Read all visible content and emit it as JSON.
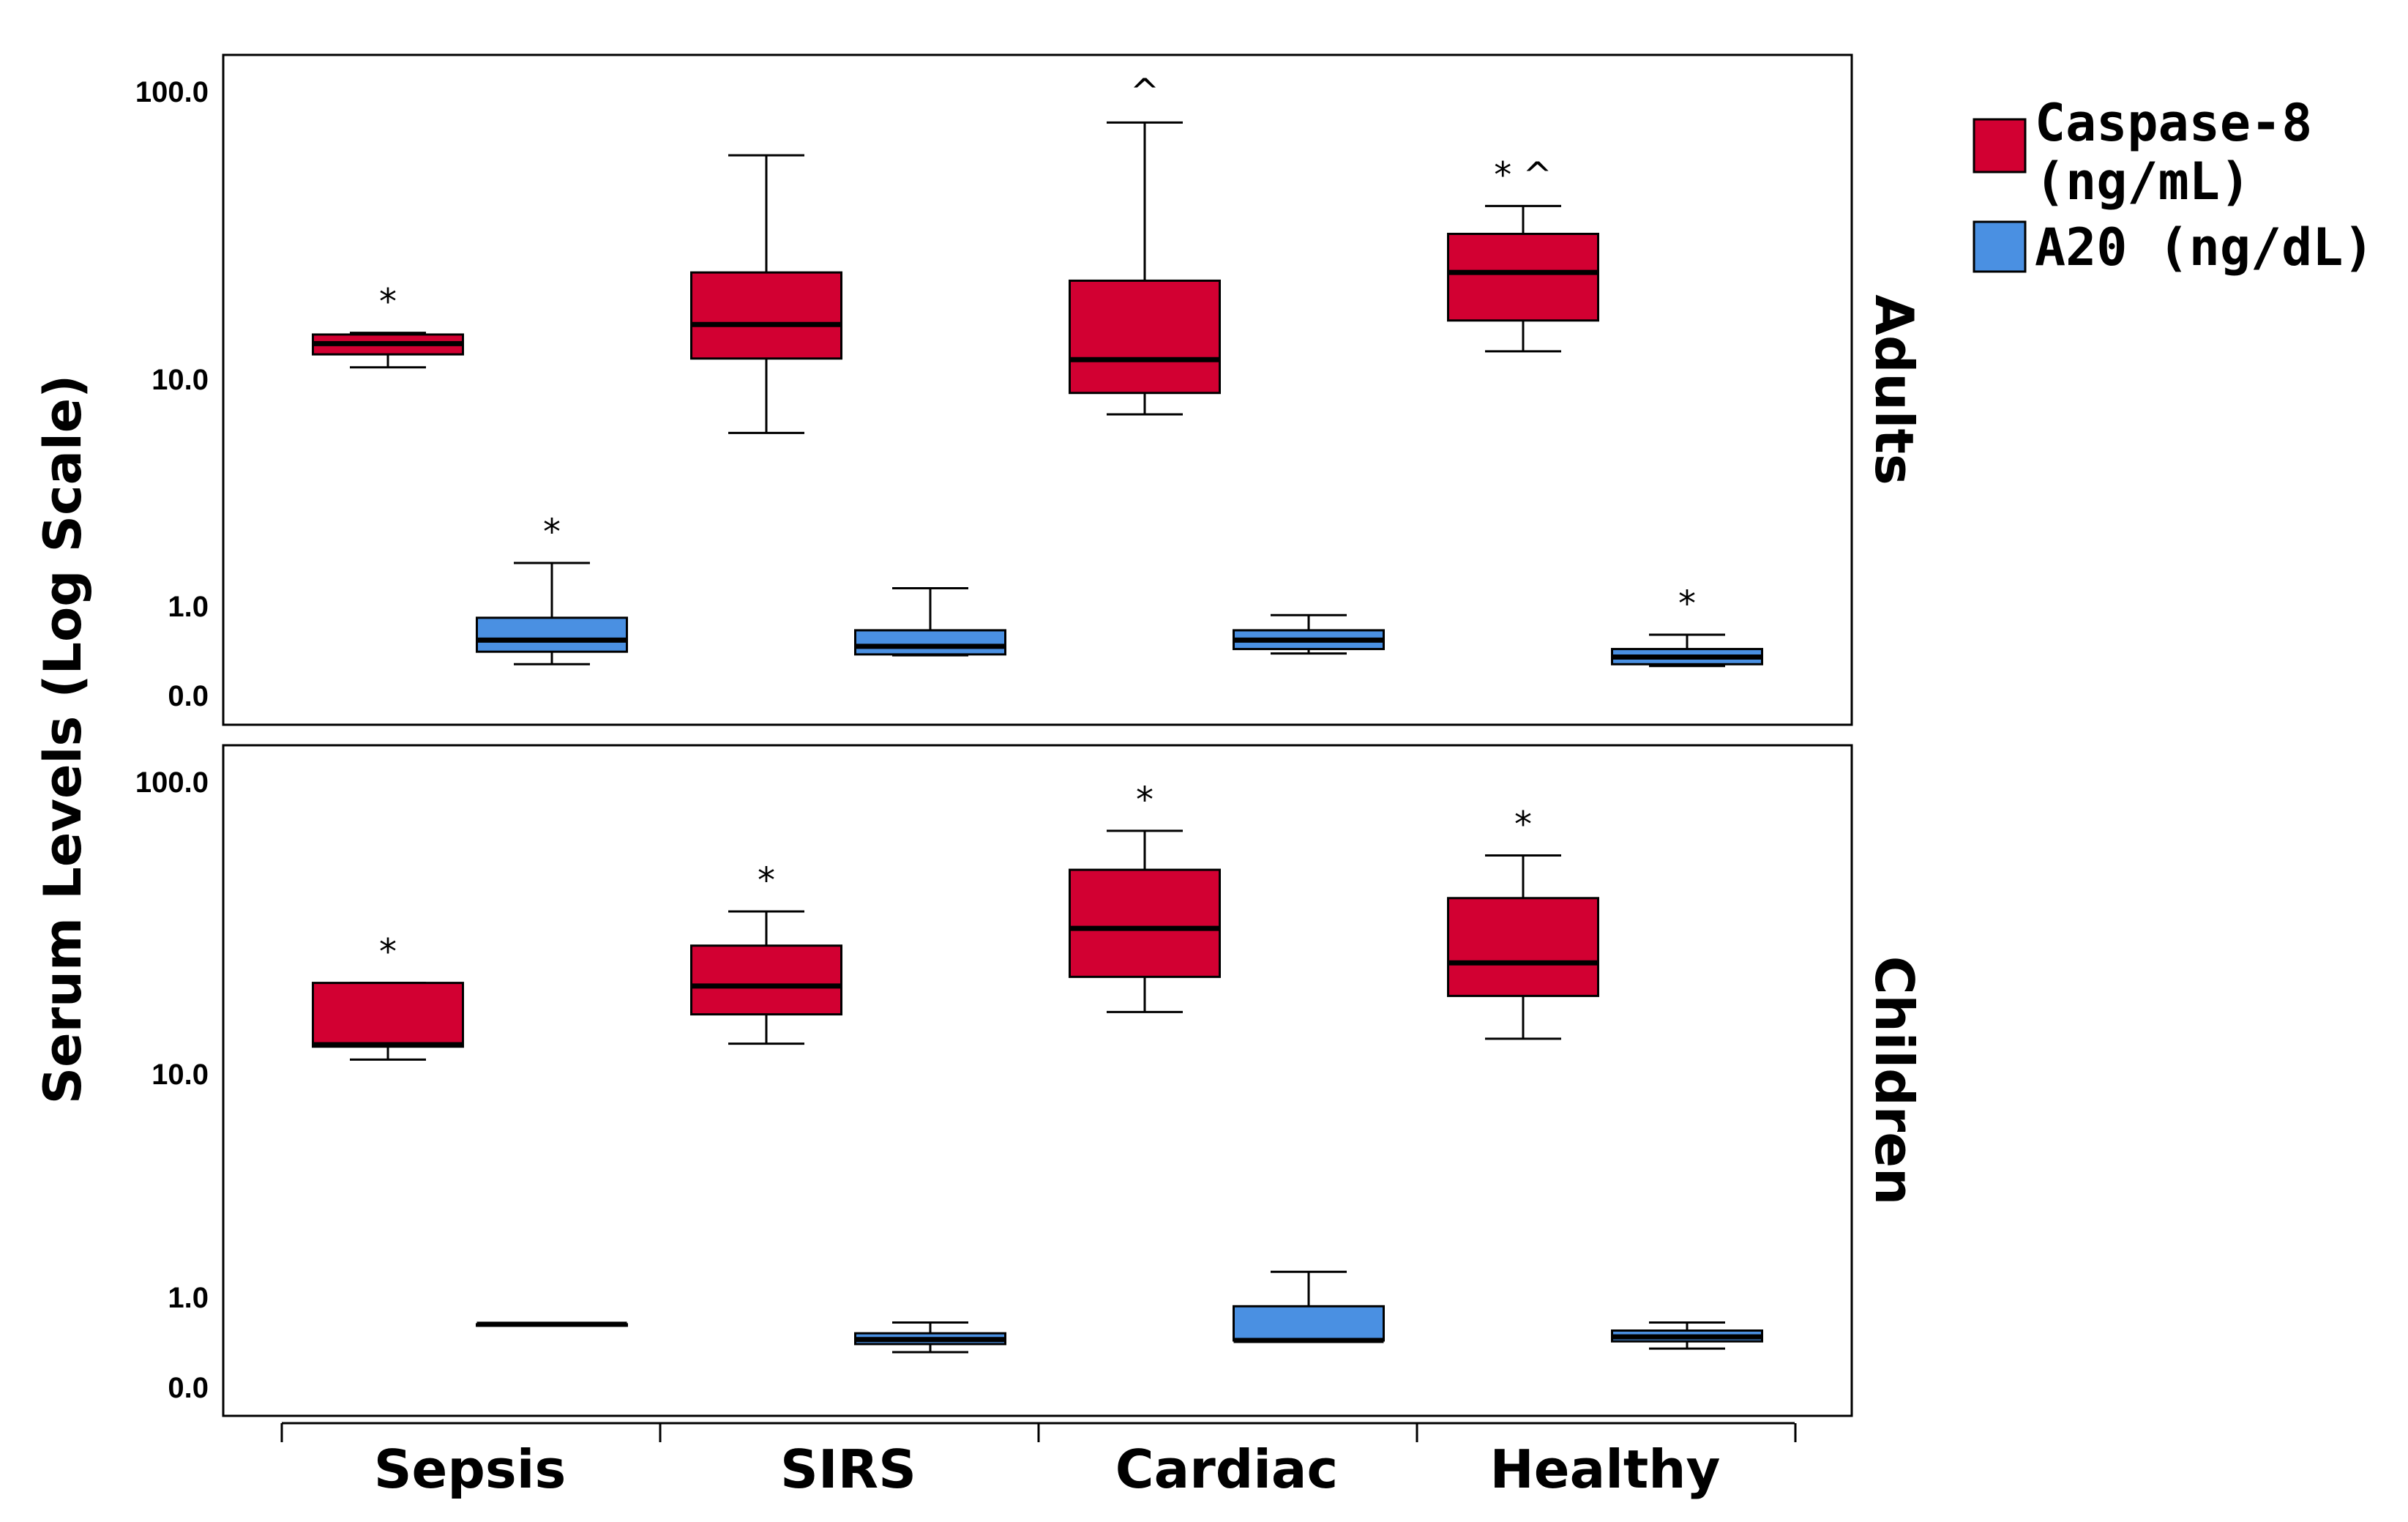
{
  "chart_data": {
    "type": "boxplot",
    "y_axis": {
      "label": "Serum Levels (Log Scale)",
      "scale": "log",
      "ticks": [
        "100.0",
        "10.0",
        "1.0",
        "0.0"
      ],
      "tick_values": [
        100,
        10,
        1,
        0
      ]
    },
    "categories": [
      "Sepsis",
      "SIRS",
      "Cardiac",
      "Healthy"
    ],
    "legend": [
      {
        "label": "Caspase-8 (ng/mL)",
        "color": "#d20032"
      },
      {
        "label": "A20 (ng/dL)",
        "color": "#4a90e2"
      }
    ],
    "panels": [
      {
        "name": "Adults",
        "series": [
          {
            "name": "Caspase-8 (ng/mL)",
            "boxes": [
              {
                "category": "Sepsis",
                "whisker_low": 11.0,
                "q1": 12.2,
                "median": 13.3,
                "q3": 14.3,
                "whisker_high": 14.5,
                "marker": "*"
              },
              {
                "category": "SIRS",
                "whisker_low": 5.8,
                "q1": 11.8,
                "median": 15.5,
                "q3": 23.5,
                "whisker_high": 60.0,
                "marker": ""
              },
              {
                "category": "Cardiac",
                "whisker_low": 7.0,
                "q1": 8.7,
                "median": 11.7,
                "q3": 22.0,
                "whisker_high": 78.0,
                "marker": "^"
              },
              {
                "category": "Healthy",
                "whisker_low": 12.5,
                "q1": 16.0,
                "median": 23.5,
                "q3": 32.0,
                "whisker_high": 40.0,
                "marker": "* ^"
              }
            ]
          },
          {
            "name": "A20 (ng/dL)",
            "boxes": [
              {
                "category": "Sepsis",
                "whisker_low": 0.35,
                "q1": 0.49,
                "median": 0.62,
                "q3": 0.87,
                "whisker_high": 1.55,
                "marker": "*"
              },
              {
                "category": "SIRS",
                "whisker_low": 0.45,
                "q1": 0.46,
                "median": 0.55,
                "q3": 0.73,
                "whisker_high": 1.2,
                "marker": ""
              },
              {
                "category": "Cardiac",
                "whisker_low": 0.47,
                "q1": 0.52,
                "median": 0.62,
                "q3": 0.73,
                "whisker_high": 0.9,
                "marker": ""
              },
              {
                "category": "Healthy",
                "whisker_low": 0.33,
                "q1": 0.35,
                "median": 0.43,
                "q3": 0.52,
                "whisker_high": 0.68,
                "marker": "*"
              }
            ]
          }
        ]
      },
      {
        "name": "Children",
        "series": [
          {
            "name": "Caspase-8 (ng/mL)",
            "boxes": [
              {
                "category": "Sepsis",
                "whisker_low": 11.2,
                "q1": 12.4,
                "median": 12.6,
                "q3": 20.5,
                "whisker_high": 20.5,
                "marker": "*"
              },
              {
                "category": "SIRS",
                "whisker_low": 12.7,
                "q1": 16.0,
                "median": 20.0,
                "q3": 27.5,
                "whisker_high": 36.0,
                "marker": "*"
              },
              {
                "category": "Cardiac",
                "whisker_low": 16.3,
                "q1": 21.5,
                "median": 31.5,
                "q3": 50.0,
                "whisker_high": 68.0,
                "marker": "*"
              },
              {
                "category": "Healthy",
                "whisker_low": 13.2,
                "q1": 18.5,
                "median": 24.0,
                "q3": 40.0,
                "whisker_high": 56.0,
                "marker": "*"
              }
            ]
          },
          {
            "name": "A20 (ng/dL)",
            "boxes": [
              {
                "category": "Sepsis",
                "whisker_low": 0.7,
                "q1": 0.7,
                "median": 0.7,
                "q3": 0.7,
                "whisker_high": 0.7,
                "marker": ""
              },
              {
                "category": "SIRS",
                "whisker_low": 0.39,
                "q1": 0.48,
                "median": 0.53,
                "q3": 0.6,
                "whisker_high": 0.72,
                "marker": ""
              },
              {
                "category": "Cardiac",
                "whisker_low": 0.52,
                "q1": 0.52,
                "median": 0.52,
                "q3": 0.9,
                "whisker_high": 1.3,
                "marker": ""
              },
              {
                "category": "Healthy",
                "whisker_low": 0.43,
                "q1": 0.51,
                "median": 0.56,
                "q3": 0.63,
                "whisker_high": 0.72,
                "marker": ""
              }
            ]
          }
        ]
      }
    ]
  }
}
